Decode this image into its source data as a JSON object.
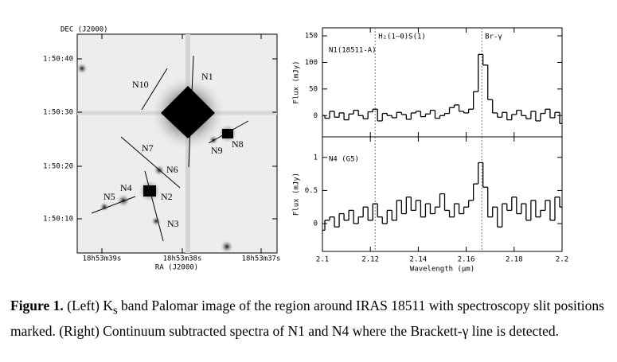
{
  "figure": {
    "image": {
      "dec_label": "DEC (J2000)",
      "ra_label": "RA (J2000)",
      "dec_ticks": [
        "1:50:40",
        "1:50:30",
        "1:50:20",
        "1:50:10"
      ],
      "ra_ticks": [
        "18h53m39s",
        "18h53m38s",
        "18h53m37s"
      ],
      "sources": [
        "N1",
        "N2",
        "N3",
        "N4",
        "N5",
        "N6",
        "N7",
        "N8",
        "N9",
        "N10"
      ]
    },
    "caption": {
      "label": "Figure 1.",
      "text1": "(Left) K",
      "sub": "s",
      "text2": " band Palomar image of the region around IRAS 18511 with spectroscopy slit positions marked. (Right) Continuum subtracted spectra of N1 and N4 where the Brackett-γ line is detected."
    }
  },
  "chart_data": [
    {
      "type": "step",
      "label": "N1(18511-A)",
      "ylabel": "Flux (mJy)",
      "color": "#000000",
      "x": [
        2.1,
        2.102,
        2.104,
        2.106,
        2.108,
        2.11,
        2.112,
        2.114,
        2.116,
        2.118,
        2.12,
        2.122,
        2.124,
        2.126,
        2.128,
        2.13,
        2.132,
        2.134,
        2.136,
        2.138,
        2.14,
        2.142,
        2.144,
        2.146,
        2.148,
        2.15,
        2.152,
        2.154,
        2.156,
        2.158,
        2.16,
        2.162,
        2.164,
        2.166,
        2.168,
        2.17,
        2.172,
        2.174,
        2.176,
        2.178,
        2.18,
        2.182,
        2.184,
        2.186,
        2.188,
        2.19,
        2.192,
        2.194,
        2.196,
        2.198,
        2.2
      ],
      "values": [
        0,
        -5,
        8,
        -3,
        5,
        -8,
        3,
        10,
        0,
        -6,
        7,
        12,
        -10,
        4,
        0,
        -4,
        6,
        2,
        -7,
        5,
        8,
        -2,
        3,
        10,
        -5,
        0,
        4,
        15,
        20,
        8,
        5,
        12,
        45,
        115,
        95,
        30,
        5,
        -3,
        6,
        -8,
        2,
        10,
        0,
        -6,
        8,
        -10,
        4,
        12,
        -4,
        6,
        -15
      ],
      "xlim": [
        2.1,
        2.2
      ],
      "ylim": [
        -40,
        165
      ],
      "xticks": [
        2.1,
        2.12,
        2.14,
        2.16,
        2.18,
        2.2
      ],
      "yticks": [
        0,
        50,
        100,
        150
      ],
      "show_xtick_labels": false,
      "annotations": [
        {
          "x": 2.122,
          "text": "H₂(1–0)S(1)"
        },
        {
          "x": 2.1665,
          "text": "Br-γ"
        }
      ]
    },
    {
      "type": "step",
      "label": "N4 (G5)",
      "ylabel": "Flux (mJy)",
      "xlabel": "Wavelength (μm)",
      "color": "#000000",
      "x": [
        2.1,
        2.102,
        2.104,
        2.106,
        2.108,
        2.11,
        2.112,
        2.114,
        2.116,
        2.118,
        2.12,
        2.122,
        2.124,
        2.126,
        2.128,
        2.13,
        2.132,
        2.134,
        2.136,
        2.138,
        2.14,
        2.142,
        2.144,
        2.146,
        2.148,
        2.15,
        2.152,
        2.154,
        2.156,
        2.158,
        2.16,
        2.162,
        2.164,
        2.166,
        2.168,
        2.17,
        2.172,
        2.174,
        2.176,
        2.178,
        2.18,
        2.182,
        2.184,
        2.186,
        2.188,
        2.19,
        2.192,
        2.194,
        2.196,
        2.198,
        2.2
      ],
      "values": [
        -0.1,
        0.05,
        0.1,
        -0.05,
        0.15,
        0.05,
        0.2,
        0,
        0.1,
        0.25,
        0.05,
        0.3,
        0.1,
        0,
        0.2,
        0.05,
        0.35,
        0.15,
        0.4,
        0.2,
        0.35,
        0.1,
        0.3,
        0.15,
        0.25,
        0.45,
        0.2,
        0.1,
        0.3,
        0.15,
        0.25,
        0.35,
        0.6,
        0.92,
        0.55,
        0.1,
        0.25,
        -0.05,
        0.3,
        0.2,
        0.4,
        0.15,
        0.3,
        0.05,
        0.35,
        0.1,
        0.2,
        0.35,
        0.05,
        0.4,
        0.25
      ],
      "xlim": [
        2.1,
        2.2
      ],
      "ylim": [
        -0.42,
        1.31
      ],
      "xticks": [
        2.1,
        2.12,
        2.14,
        2.16,
        2.18,
        2.2
      ],
      "yticks": [
        0,
        0.5,
        1
      ],
      "show_xtick_labels": true,
      "vlines": [
        2.122,
        2.1665
      ]
    }
  ]
}
